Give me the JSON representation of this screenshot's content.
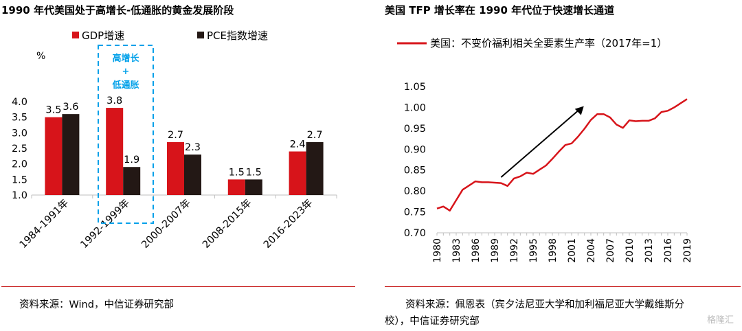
{
  "left": {
    "title": "1990 年代美国处于高增长-低通胀的黄金发展阶段",
    "source": "资料来源：Wind，中信证券研究部",
    "highlight_text": [
      "高增长",
      "+",
      "低通胀"
    ],
    "colors": {
      "gdp": "#d7141a",
      "pce": "#231815",
      "highlight": "#00a0e9"
    }
  },
  "right": {
    "title": "美国 TFP 增长率在 1990 年代位于快速增长通道",
    "source_line1": "资料来源：佩恩表（宾夕法尼亚大学和加利福尼亚大学戴维斯分",
    "source_line2": "校），中信证券研究部",
    "colors": {
      "line": "#d7141a",
      "arrow": "#000000"
    }
  },
  "watermark": "格隆汇",
  "chart_data": [
    {
      "type": "bar",
      "title": "",
      "ylabel": "%",
      "ylim": [
        1.0,
        4.0
      ],
      "yticks": [
        "1.0",
        "1.5",
        "2.0",
        "2.5",
        "3.0",
        "3.5",
        "4.0"
      ],
      "legend_position": "top",
      "categories": [
        "1984-1991年",
        "1992-1999年",
        "2000-2007年",
        "2008-2015年",
        "2016-2023年"
      ],
      "series": [
        {
          "name": "GDP增速",
          "values": [
            3.5,
            3.8,
            2.7,
            1.5,
            2.4
          ],
          "labels": [
            "3.5",
            "3.8",
            "2.7",
            "1.5",
            "2.4"
          ]
        },
        {
          "name": "PCE指数增速",
          "values": [
            3.6,
            1.9,
            2.3,
            1.5,
            2.7
          ],
          "labels": [
            "3.6",
            "1.9",
            "2.3",
            "1.5",
            "2.7"
          ]
        }
      ]
    },
    {
      "type": "line",
      "title": "",
      "ylim": [
        0.7,
        1.05
      ],
      "yticks": [
        "0.70",
        "0.75",
        "0.80",
        "0.85",
        "0.90",
        "0.95",
        "1.00",
        "1.05"
      ],
      "xticks": [
        "1980",
        "1983",
        "1986",
        "1989",
        "1992",
        "1995",
        "1998",
        "2001",
        "2004",
        "2007",
        "2010",
        "2013",
        "2016",
        "2019"
      ],
      "legend_position": "top",
      "series": [
        {
          "name": "美国：不变价福利相关全要素生产率（2017年=1）",
          "x": [
            1980,
            1981,
            1982,
            1983,
            1984,
            1985,
            1986,
            1987,
            1988,
            1989,
            1990,
            1991,
            1992,
            1993,
            1994,
            1995,
            1996,
            1997,
            1998,
            1999,
            2000,
            2001,
            2002,
            2003,
            2004,
            2005,
            2006,
            2007,
            2008,
            2009,
            2010,
            2011,
            2012,
            2013,
            2014,
            2015,
            2016,
            2017,
            2018,
            2019
          ],
          "y": [
            0.758,
            0.763,
            0.753,
            0.778,
            0.803,
            0.813,
            0.823,
            0.821,
            0.821,
            0.82,
            0.819,
            0.812,
            0.83,
            0.835,
            0.844,
            0.841,
            0.851,
            0.861,
            0.877,
            0.894,
            0.91,
            0.914,
            0.93,
            0.949,
            0.97,
            0.984,
            0.984,
            0.976,
            0.959,
            0.951,
            0.969,
            0.967,
            0.968,
            0.968,
            0.974,
            0.989,
            0.992,
            1.0,
            1.01,
            1.02
          ]
        }
      ],
      "annotation": "upward arrow 1990-2003"
    }
  ]
}
